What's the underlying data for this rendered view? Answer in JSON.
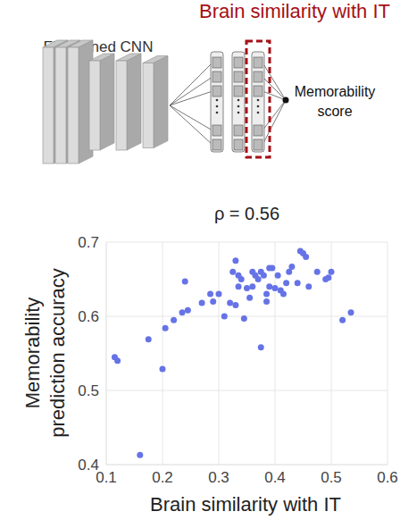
{
  "diagram": {
    "title": "Brain similarity with IT",
    "network_label": "Fine-tuned CNN",
    "output_label": "Memorability score"
  },
  "chart_data": {
    "type": "scatter",
    "title": "ρ = 0.56",
    "x_label": "Brain similarity with IT",
    "y_label": "Memorability prediction accuracy",
    "x": [
      0.115,
      0.12,
      0.16,
      0.175,
      0.2,
      0.205,
      0.22,
      0.235,
      0.24,
      0.245,
      0.27,
      0.285,
      0.29,
      0.3,
      0.31,
      0.32,
      0.325,
      0.33,
      0.33,
      0.335,
      0.335,
      0.34,
      0.345,
      0.35,
      0.355,
      0.36,
      0.36,
      0.365,
      0.37,
      0.375,
      0.375,
      0.38,
      0.385,
      0.385,
      0.39,
      0.39,
      0.395,
      0.4,
      0.405,
      0.41,
      0.415,
      0.42,
      0.425,
      0.43,
      0.44,
      0.445,
      0.45,
      0.455,
      0.46,
      0.475,
      0.49,
      0.495,
      0.5,
      0.52,
      0.535
    ],
    "values": [
      0.545,
      0.54,
      0.413,
      0.569,
      0.529,
      0.584,
      0.595,
      0.605,
      0.647,
      0.608,
      0.618,
      0.63,
      0.62,
      0.63,
      0.6,
      0.618,
      0.66,
      0.675,
      0.615,
      0.655,
      0.64,
      0.65,
      0.597,
      0.638,
      0.625,
      0.64,
      0.66,
      0.655,
      0.65,
      0.66,
      0.558,
      0.655,
      0.62,
      0.63,
      0.64,
      0.665,
      0.665,
      0.638,
      0.655,
      0.635,
      0.63,
      0.645,
      0.66,
      0.667,
      0.645,
      0.688,
      0.685,
      0.68,
      0.64,
      0.66,
      0.65,
      0.652,
      0.66,
      0.595,
      0.605
    ],
    "color": "#6673e6",
    "xlim": [
      0.1,
      0.6
    ],
    "ylim": [
      0.4,
      0.7
    ],
    "xticks": [
      0.1,
      0.2,
      0.3,
      0.4,
      0.5,
      0.6
    ],
    "yticks": [
      0.4,
      0.5,
      0.6,
      0.7
    ],
    "grid": true
  }
}
